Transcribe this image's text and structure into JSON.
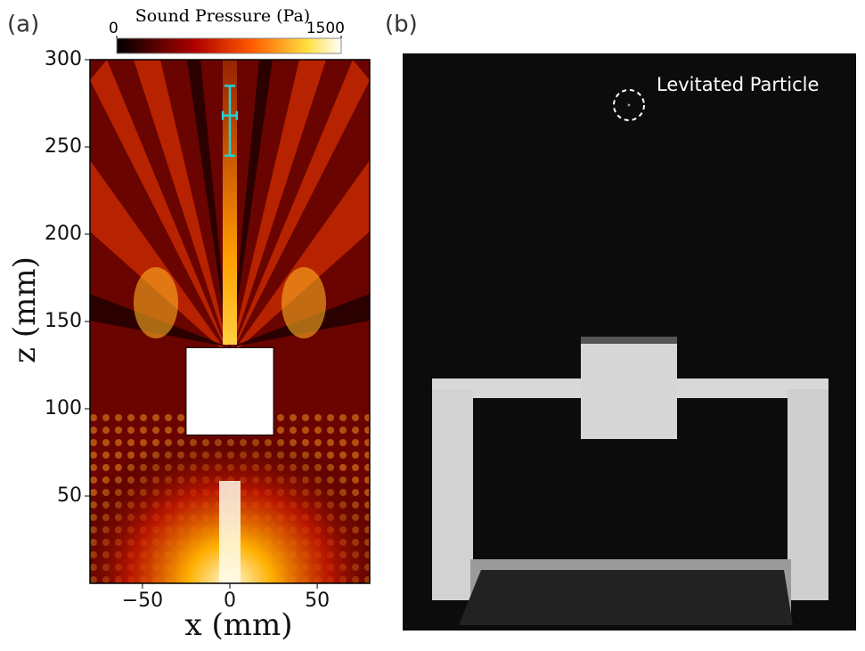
{
  "chart_data": {
    "type": "heatmap",
    "panel_label": "(a)",
    "colorbar": {
      "label": "Sound  Pressure (Pa)",
      "lim": [
        0,
        1500
      ],
      "ticks": [
        0,
        1500
      ]
    },
    "xlabel": "x (mm)",
    "ylabel": "z (mm)",
    "xlim": [
      -80,
      80
    ],
    "xticks": [
      {
        "value": -50,
        "label": "−50"
      },
      0,
      50
    ],
    "ylim": [
      0,
      300
    ],
    "yticks": [
      50,
      100,
      150,
      200,
      250,
      300
    ],
    "obstacle": {
      "x": [
        -25,
        25
      ],
      "z": [
        85,
        135
      ]
    },
    "error_bar": {
      "x": 0,
      "z": 268,
      "z_lower": 245,
      "z_upper": 285,
      "x_err": 4,
      "color": "#22d3d3"
    }
  },
  "photo": {
    "panel_label": "(b)",
    "annotation": "Levitated Particle"
  }
}
